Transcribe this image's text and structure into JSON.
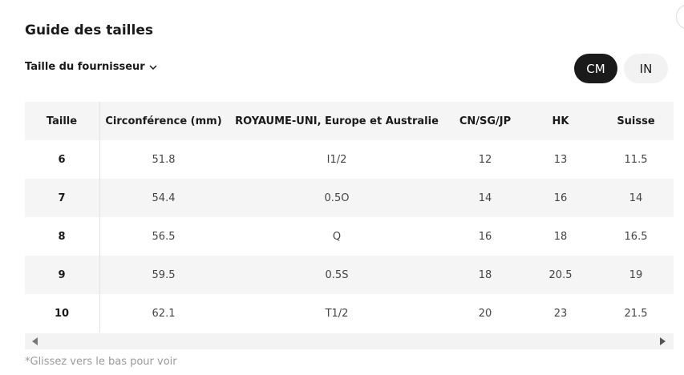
{
  "header": {
    "title": "Guide des tailles",
    "selector": "Taille du fournisseur",
    "units": [
      "CM",
      "IN"
    ]
  },
  "table": {
    "columns": [
      "Taille",
      "Circonférence (mm)",
      "ROYAUME-UNI, Europe et Australie",
      "CN/SG/JP",
      "HK",
      "Suisse"
    ],
    "rows": [
      [
        "6",
        "51.8",
        "I1/2",
        "12",
        "13",
        "11.5"
      ],
      [
        "7",
        "54.4",
        "0.5O",
        "14",
        "16",
        "14"
      ],
      [
        "8",
        "56.5",
        "Q",
        "16",
        "18",
        "16.5"
      ],
      [
        "9",
        "59.5",
        "0.5S",
        "18",
        "20.5",
        "19"
      ],
      [
        "10",
        "62.1",
        "T1/2",
        "20",
        "23",
        "21.5"
      ]
    ]
  },
  "footer": {
    "note": "*Glissez vers le bas pour voir"
  }
}
